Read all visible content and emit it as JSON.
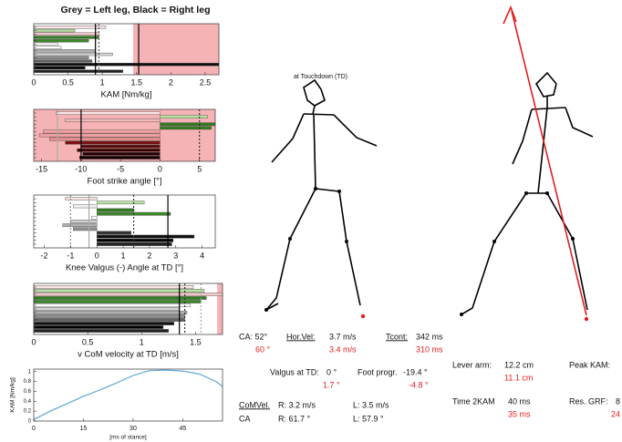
{
  "chart_data": [
    {
      "type": "hbar",
      "title": "Grey = Left leg, Black = Right leg",
      "xlabel": "KAM [Nm/kg]",
      "xlim": [
        0,
        2.7
      ],
      "xticks": [
        0,
        0.5,
        1,
        1.5,
        2,
        2.5
      ],
      "shade": [
        1.45,
        2.7
      ],
      "values": [
        1.05,
        0.6,
        0.95,
        0.95,
        0.8,
        0.35,
        0.4,
        0.9,
        1.15,
        0.8,
        0.85,
        2.7,
        0.75,
        1.3
      ],
      "colors": [
        "#fbe4e4",
        "#b9e0a5",
        "#f6c9c9",
        "#2f7d1f",
        "#3a8a28",
        "#ffffff",
        "#ffffff",
        "#b0b0b0",
        "#d5d5d5",
        "#909090",
        "#606060",
        "#111111",
        "#000000",
        "#222222"
      ],
      "lines": [
        {
          "value": 0.9,
          "color": "#000000",
          "dash": "none"
        },
        {
          "value": 0.95,
          "color": "#555555",
          "dash": "2 2"
        },
        {
          "value": 1.53,
          "color": "#000000",
          "dash": "none"
        }
      ]
    },
    {
      "type": "hbar",
      "xlabel": "Foot strike angle [°]",
      "xlim": [
        -16,
        7
      ],
      "xticks": [
        -15,
        -10,
        -5,
        0,
        5
      ],
      "shade": [
        -16,
        7
      ],
      "values": [
        -13.2,
        6,
        -12,
        7,
        6.5,
        -14.8,
        -15.3,
        -14,
        -12,
        -10,
        -10.5,
        -9.8,
        -10.2
      ],
      "colors": [
        "#fbe4e4",
        "#b9e0a5",
        "#f4b8b8",
        "#2e7d1e",
        "#2e7d1e",
        "#f2a0a0",
        "#f2a0a0",
        "#e89090",
        "#7a1010",
        "#5a0808",
        "#3a0000",
        "#2a0000",
        "#1a0000"
      ],
      "lines": [
        {
          "value": -13,
          "color": "#aaaaaa",
          "dash": "none"
        },
        {
          "value": -10,
          "color": "#000000",
          "dash": "none"
        },
        {
          "value": 5,
          "color": "#333333",
          "dash": "2 2"
        }
      ]
    },
    {
      "type": "hbar",
      "xlabel": "Knee Valgus (-) Angle at TD [°]",
      "xlim": [
        -2.4,
        4.5
      ],
      "xticks": [
        -2,
        -1,
        0,
        1,
        2,
        3,
        4
      ],
      "values": [
        -1.2,
        1.8,
        -0.9,
        1.4,
        2.8,
        -0.2,
        -1,
        -1.3,
        -0.9,
        1.3,
        3.7,
        2.9,
        2.85
      ],
      "colors": [
        "#fbe4e4",
        "#b9e0a5",
        "#f0f0f0",
        "#2f7d1f",
        "#3a8a28",
        "#ffffff",
        "#d0d0d0",
        "#b0b0b0",
        "#909090",
        "#333333",
        "#111111",
        "#000000",
        "#222222"
      ],
      "lines": [
        {
          "value": -0.3,
          "color": "#aaaaaa",
          "dash": "none"
        },
        {
          "value": -1,
          "color": "#888888",
          "dash": "2 2"
        },
        {
          "value": 1.4,
          "color": "#333333",
          "dash": "2 2"
        },
        {
          "value": 2.7,
          "color": "#000000",
          "dash": "none"
        }
      ]
    },
    {
      "type": "hbar",
      "xlabel": "v CoM velocity at TD [m/s]",
      "xlim": [
        0,
        1.75
      ],
      "xticks": [
        0,
        0.5,
        1,
        1.5
      ],
      "shade": [
        1.7,
        1.75
      ],
      "values": [
        1.48,
        1.58,
        1.75,
        1.6,
        1.55,
        1.45,
        1.35,
        1.42,
        1.4,
        1.4,
        1.3,
        1.2,
        1.25
      ],
      "colors": [
        "#fbe4e4",
        "#b9e0a5",
        "#f6c9c9",
        "#2f7d1f",
        "#3a8a28",
        "#ffffff",
        "#d5d5d5",
        "#b0b0b0",
        "#909090",
        "#606060",
        "#111111",
        "#000000",
        "#222222"
      ],
      "lines": [
        {
          "value": 1.35,
          "color": "#000000",
          "dash": "none"
        },
        {
          "value": 1.4,
          "color": "#333333",
          "dash": "2 2"
        },
        {
          "value": 1.55,
          "color": "#aaaaaa",
          "dash": "2 2"
        }
      ]
    },
    {
      "type": "line",
      "ylabel": "KAM [Nm/kg]",
      "xlabel": "[ms of stance]",
      "xlim": [
        0,
        57
      ],
      "xticks": [
        0,
        15,
        30,
        45
      ],
      "ylim": [
        0,
        1.05
      ],
      "yticks": [
        0,
        0.2,
        0.4,
        0.6,
        0.8,
        1
      ],
      "x": [
        0,
        5,
        10,
        15,
        20,
        25,
        30,
        35,
        40,
        45,
        50,
        55,
        57
      ],
      "values": [
        0.03,
        0.2,
        0.35,
        0.5,
        0.63,
        0.77,
        0.92,
        1.02,
        1.03,
        1.01,
        0.95,
        0.8,
        0.7
      ],
      "color": "#6aaed6"
    }
  ],
  "panel": {
    "td_label": "at Touchdown (TD)",
    "ca": "CA: 52°",
    "ca_ref": "60 °",
    "horvel_label": "Hor.Vel:",
    "horvel": "3.7 m/s",
    "horvel_ref": "3.4 m/s",
    "tcont_label": "Tcont:",
    "tcont": "342 ms",
    "tcont_ref": "310 ms",
    "valgus_label": "Valgus at TD:",
    "valgus": "0 °",
    "valgus_ref": "1.7 °",
    "foot_label": "Foot progr.",
    "foot": "-19.4 °",
    "foot_ref": "-4.8 °",
    "comvel_label": "CoMVel.",
    "comvel_r": "R: 3.2 m/s",
    "comvel_l": "L: 3.5 m/s",
    "ca2_label": "CA",
    "ca2_r": "R: 61.7 °",
    "ca2_l": "L: 57.9 °",
    "lever_label": "Lever arm:",
    "lever": "12.2 cm",
    "lever_ref": "11.1 cm",
    "peak_label": "Peak KAM:",
    "t2kam_label": "Time 2KAM",
    "t2kam": "40 ms",
    "t2kam_ref": "35 ms",
    "grf_label": "Res. GRF:",
    "grf": "8",
    "grf_ref": "24"
  }
}
